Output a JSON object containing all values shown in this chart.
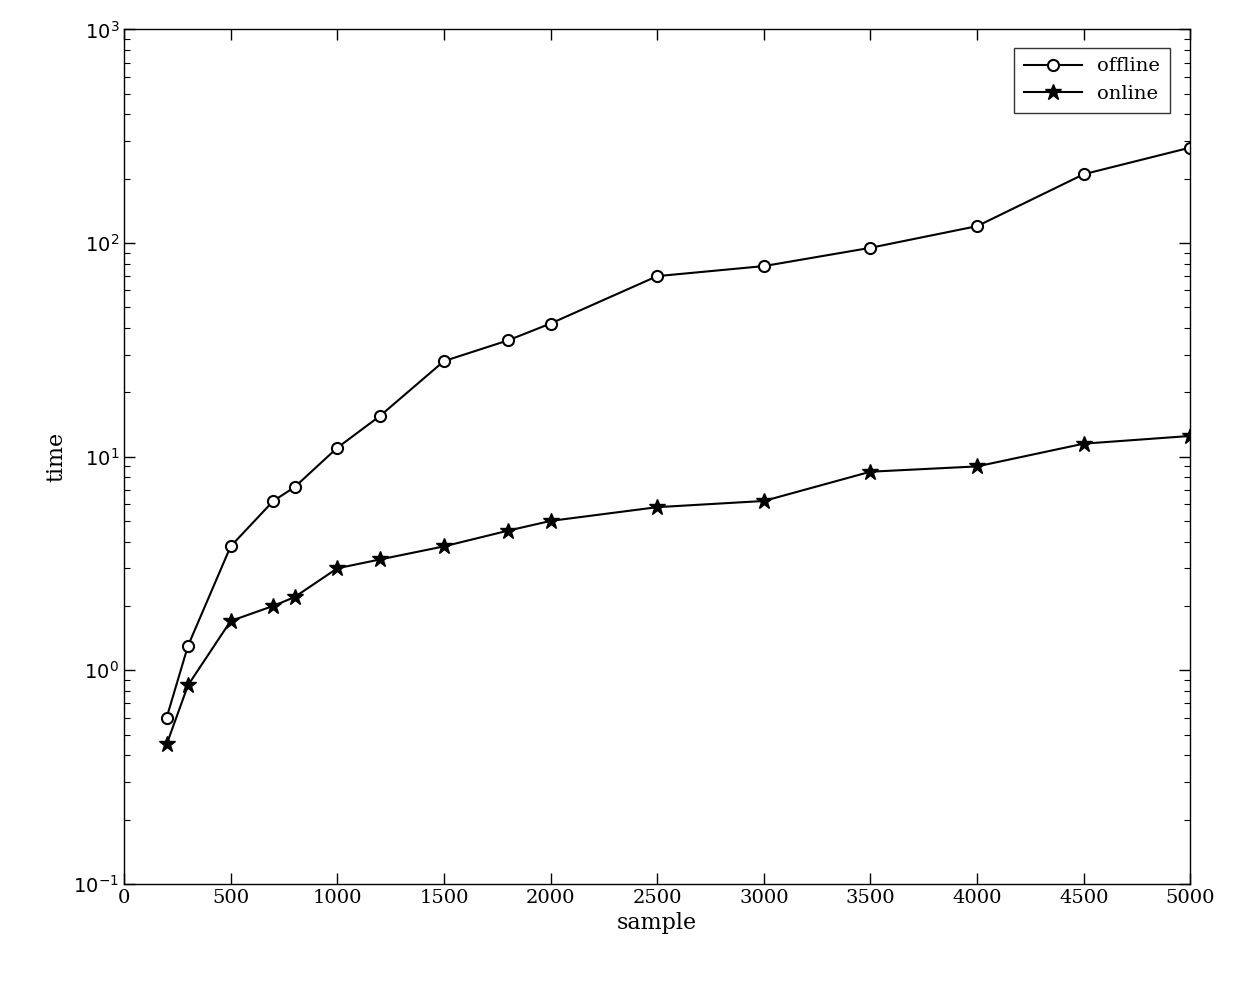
{
  "x": [
    200,
    300,
    500,
    700,
    800,
    1000,
    1200,
    1500,
    1800,
    2000,
    2500,
    3000,
    3500,
    4000,
    4500,
    5000
  ],
  "offline": [
    0.6,
    1.3,
    3.8,
    6.2,
    7.2,
    11.0,
    15.5,
    28.0,
    35.0,
    42.0,
    70.0,
    78.0,
    95.0,
    120.0,
    210.0,
    280.0
  ],
  "online": [
    0.45,
    0.85,
    1.7,
    2.0,
    2.2,
    3.0,
    3.3,
    3.8,
    4.5,
    5.0,
    5.8,
    6.2,
    8.5,
    9.0,
    11.5,
    12.5
  ],
  "xlabel": "sample",
  "ylabel": "time",
  "legend_offline": "offline",
  "legend_online": "online",
  "line_color": "#000000",
  "xlim": [
    0,
    5000
  ],
  "ylim": [
    0.1,
    1000
  ],
  "xticks": [
    0,
    500,
    1000,
    1500,
    2000,
    2500,
    3000,
    3500,
    4000,
    4500,
    5000
  ],
  "yticks": [
    0.1,
    1,
    10,
    100,
    1000
  ],
  "background_color": "#ffffff"
}
